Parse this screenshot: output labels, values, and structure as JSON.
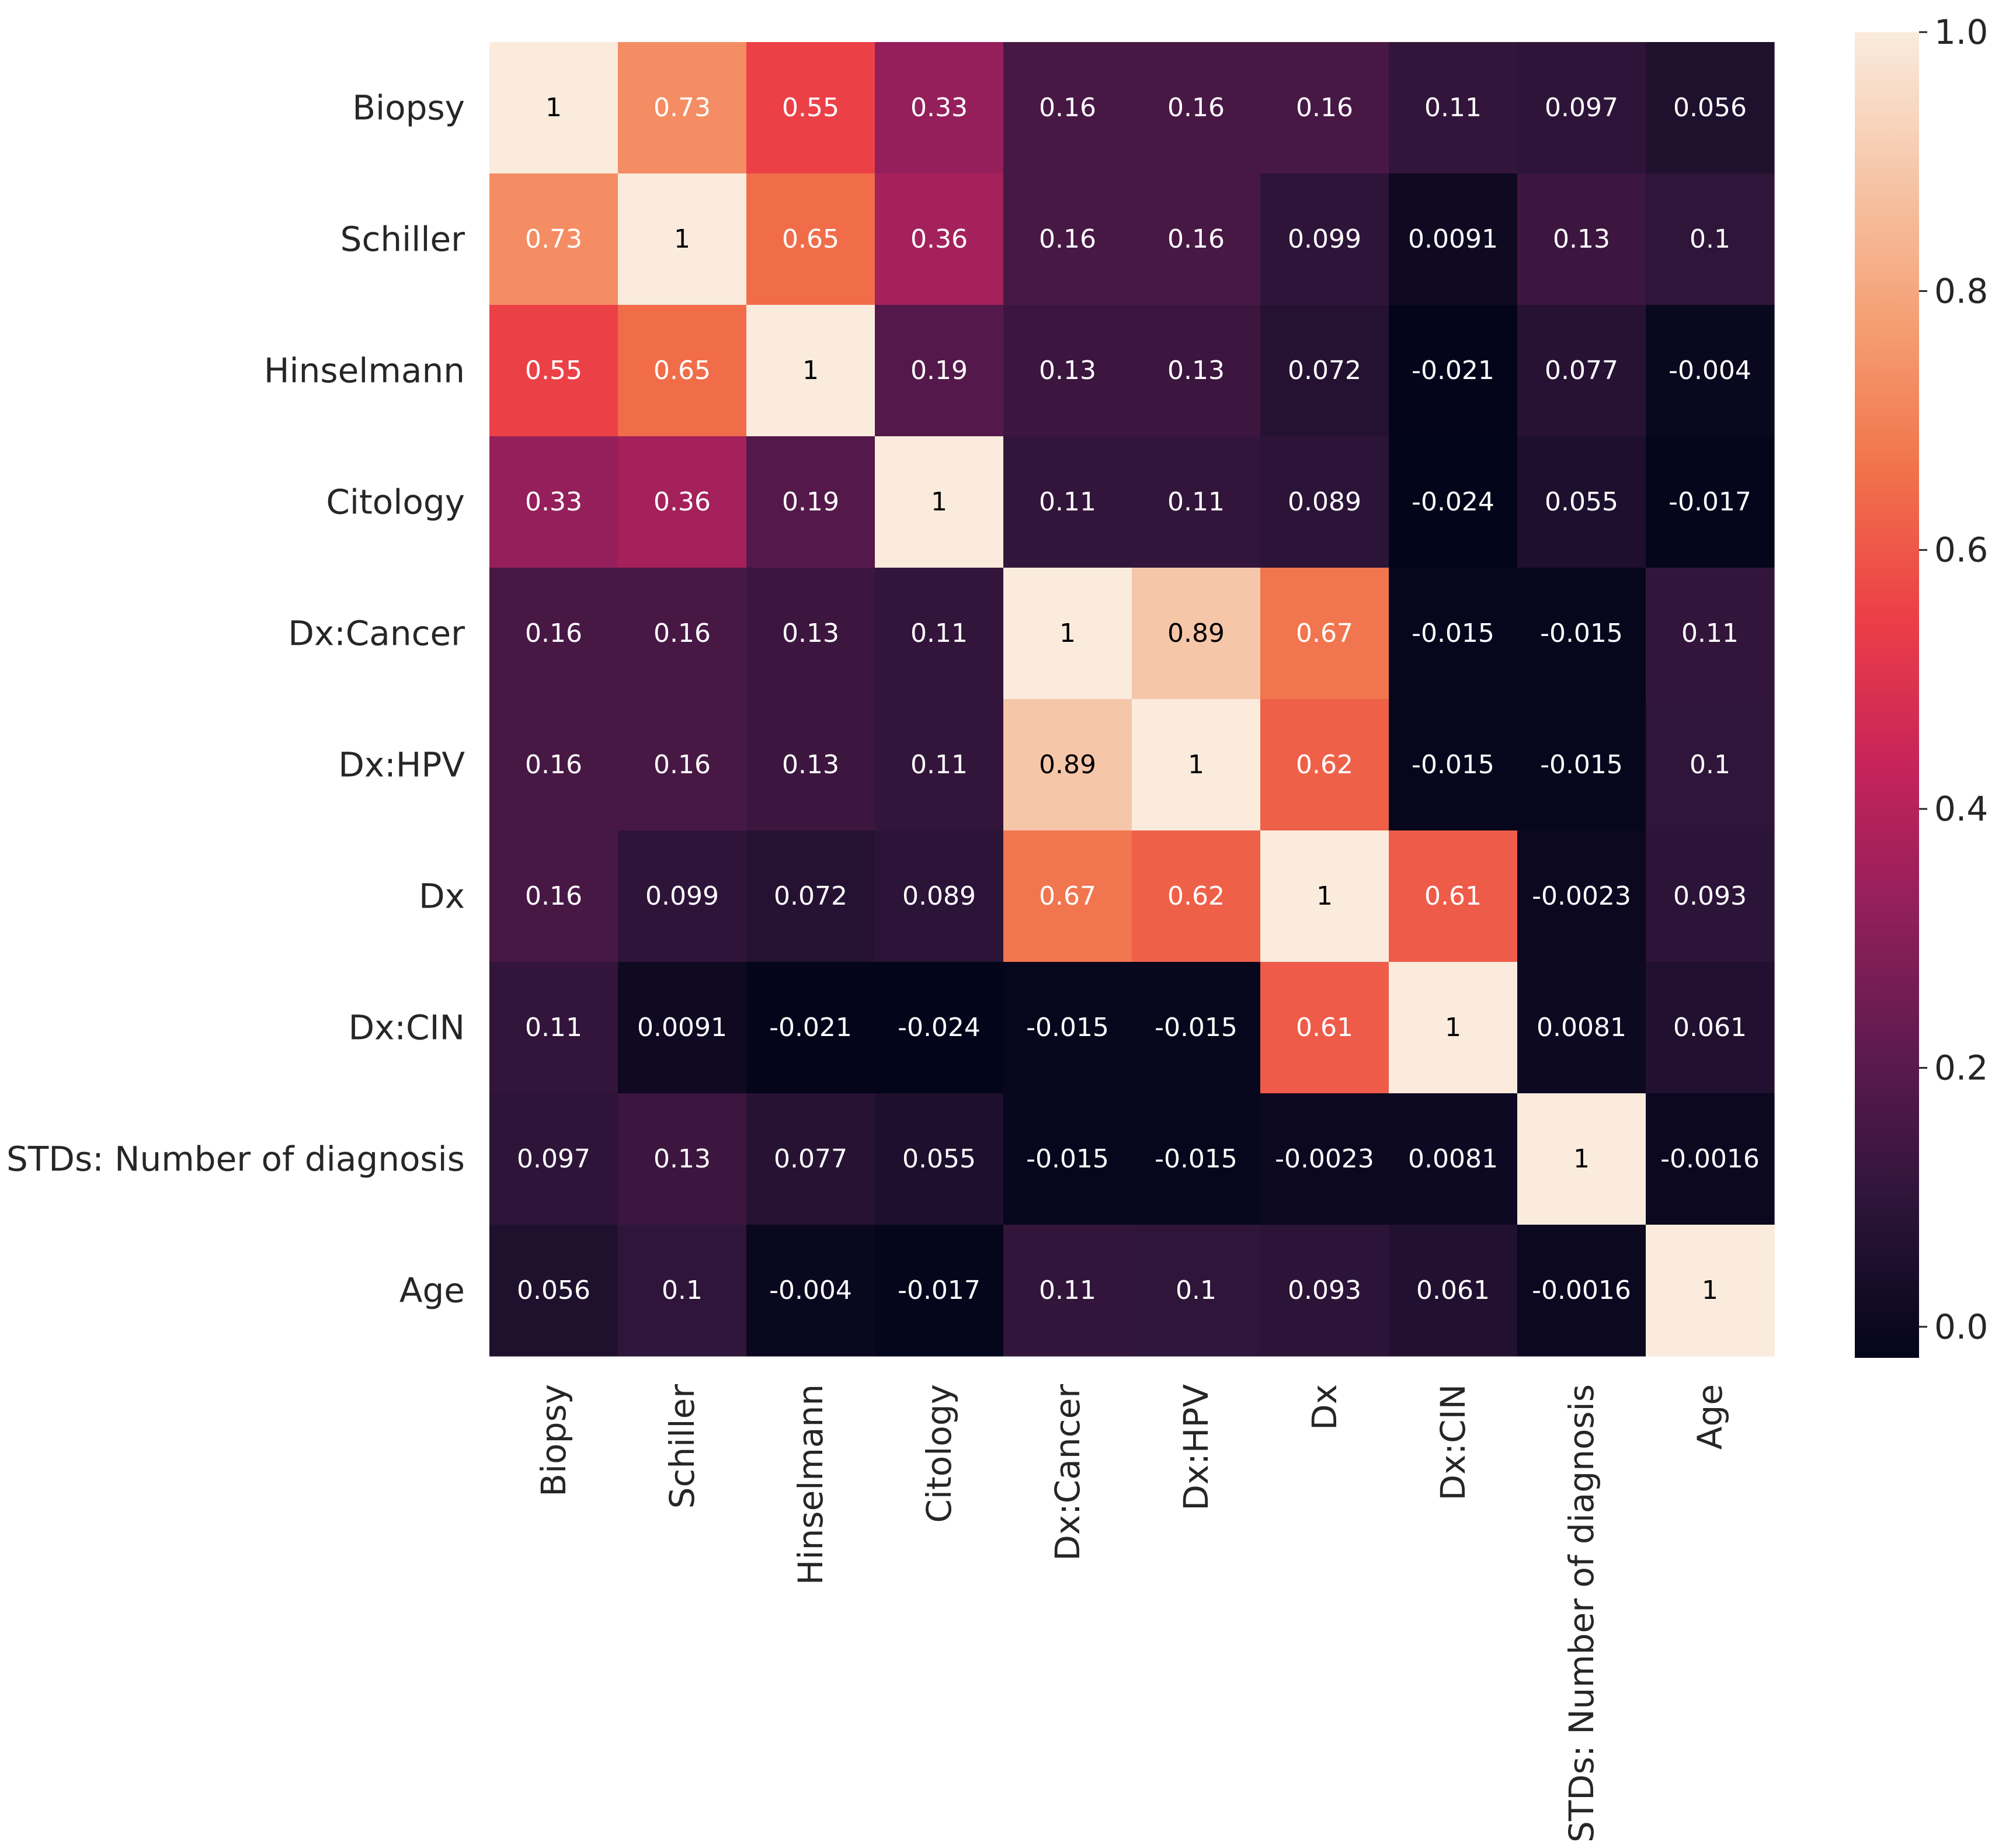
{
  "chart_data": {
    "type": "heatmap",
    "title": "",
    "xlabel": "",
    "ylabel": "",
    "row_labels": [
      "Biopsy",
      "Schiller",
      "Hinselmann",
      "Citology",
      "Dx:Cancer",
      "Dx:HPV",
      "Dx",
      "Dx:CIN",
      "STDs: Number of diagnosis",
      "Age"
    ],
    "col_labels": [
      "Biopsy",
      "Schiller",
      "Hinselmann",
      "Citology",
      "Dx:Cancer",
      "Dx:HPV",
      "Dx",
      "Dx:CIN",
      "STDs: Number of diagnosis",
      "Age"
    ],
    "values": [
      [
        1,
        0.73,
        0.55,
        0.33,
        0.16,
        0.16,
        0.16,
        0.11,
        0.097,
        0.056
      ],
      [
        0.73,
        1,
        0.65,
        0.36,
        0.16,
        0.16,
        0.099,
        0.0091,
        0.13,
        0.1
      ],
      [
        0.55,
        0.65,
        1,
        0.19,
        0.13,
        0.13,
        0.072,
        -0.021,
        0.077,
        -0.004
      ],
      [
        0.33,
        0.36,
        0.19,
        1,
        0.11,
        0.11,
        0.089,
        -0.024,
        0.055,
        -0.017
      ],
      [
        0.16,
        0.16,
        0.13,
        0.11,
        1,
        0.89,
        0.67,
        -0.015,
        -0.015,
        0.11
      ],
      [
        0.16,
        0.16,
        0.13,
        0.11,
        0.89,
        1,
        0.62,
        -0.015,
        -0.015,
        0.1
      ],
      [
        0.16,
        0.099,
        0.072,
        0.089,
        0.67,
        0.62,
        1,
        0.61,
        -0.0023,
        0.093
      ],
      [
        0.11,
        0.0091,
        -0.021,
        -0.024,
        -0.015,
        -0.015,
        0.61,
        1,
        0.0081,
        0.061
      ],
      [
        0.097,
        0.13,
        0.077,
        0.055,
        -0.015,
        -0.015,
        -0.0023,
        0.0081,
        1,
        -0.0016
      ],
      [
        0.056,
        0.1,
        -0.004,
        -0.017,
        0.11,
        0.1,
        0.093,
        0.061,
        -0.0016,
        1
      ]
    ],
    "annotations": [
      [
        "1",
        "0.73",
        "0.55",
        "0.33",
        "0.16",
        "0.16",
        "0.16",
        "0.11",
        "0.097",
        "0.056"
      ],
      [
        "0.73",
        "1",
        "0.65",
        "0.36",
        "0.16",
        "0.16",
        "0.099",
        "0.0091",
        "0.13",
        "0.1"
      ],
      [
        "0.55",
        "0.65",
        "1",
        "0.19",
        "0.13",
        "0.13",
        "0.072",
        "-0.021",
        "0.077",
        "-0.004"
      ],
      [
        "0.33",
        "0.36",
        "0.19",
        "1",
        "0.11",
        "0.11",
        "0.089",
        "-0.024",
        "0.055",
        "-0.017"
      ],
      [
        "0.16",
        "0.16",
        "0.13",
        "0.11",
        "1",
        "0.89",
        "0.67",
        "-0.015",
        "-0.015",
        "0.11"
      ],
      [
        "0.16",
        "0.16",
        "0.13",
        "0.11",
        "0.89",
        "1",
        "0.62",
        "-0.015",
        "-0.015",
        "0.1"
      ],
      [
        "0.16",
        "0.099",
        "0.072",
        "0.089",
        "0.67",
        "0.62",
        "1",
        "0.61",
        "-0.0023",
        "0.093"
      ],
      [
        "0.11",
        "0.0091",
        "-0.021",
        "-0.024",
        "-0.015",
        "-0.015",
        "0.61",
        "1",
        "0.0081",
        "0.061"
      ],
      [
        "0.097",
        "0.13",
        "0.077",
        "0.055",
        "-0.015",
        "-0.015",
        "-0.0023",
        "0.0081",
        "1",
        "-0.0016"
      ],
      [
        "0.056",
        "0.1",
        "-0.004",
        "-0.017",
        "0.11",
        "0.1",
        "0.093",
        "0.061",
        "-0.0016",
        "1"
      ]
    ],
    "colorbar": {
      "vmin": -0.024,
      "vmax": 1.0,
      "ticks": [
        0.0,
        0.2,
        0.4,
        0.6,
        0.8,
        1.0
      ],
      "tick_labels": [
        "0.0",
        "0.2",
        "0.4",
        "0.6",
        "0.8",
        "1.0"
      ],
      "colormap": "rocket",
      "colormap_stops": [
        "#03051a",
        "#2b1437",
        "#5a1a4d",
        "#8f1f5b",
        "#c6235a",
        "#ec3e47",
        "#f1714a",
        "#f59e72",
        "#f6c5a7",
        "#faebdd"
      ],
      "legend_position": "right"
    },
    "annotation_dark_text_color": "#000000",
    "annotation_light_text_color": "#ffffff"
  }
}
